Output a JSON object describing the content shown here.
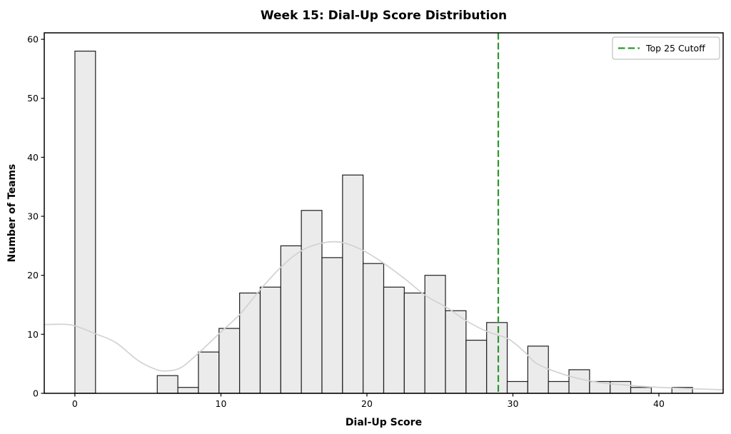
{
  "title": "Week 15: Dial-Up Score Distribution",
  "axes": {
    "xlabel": "Dial-Up Score",
    "ylabel": "Number of Teams"
  },
  "legend": {
    "label": "Top 25 Cutoff",
    "position": "upper right"
  },
  "colors": {
    "background": "#ffffff",
    "bar_fill": "#ebebeb",
    "bar_edge": "#1f1f1f",
    "kde_line": "#d2d2d2",
    "cutoff_line": "#2d962d",
    "spine": "#000000",
    "legend_border": "#b5b5b5"
  },
  "chart_data": {
    "type": "bar",
    "subtype": "histogram",
    "title": "Week 15: Dial-Up Score Distribution",
    "xlabel": "Dial-Up Score",
    "ylabel": "Number of Teams",
    "grid": false,
    "legend_position": "upper right",
    "xlim": [
      -2.1,
      44.4
    ],
    "ylim": [
      0,
      61.1
    ],
    "x_ticks": [
      0,
      10,
      20,
      30,
      40
    ],
    "y_ticks": [
      0,
      10,
      20,
      30,
      40,
      50,
      60
    ],
    "bin_start": 0,
    "bin_width": 1.41,
    "bin_counts": [
      58,
      0,
      0,
      0,
      3,
      1,
      7,
      11,
      17,
      18,
      25,
      31,
      23,
      37,
      22,
      18,
      17,
      20,
      14,
      9,
      12,
      2,
      8,
      2,
      4,
      2,
      2,
      1,
      0,
      1
    ],
    "total_teams": 365,
    "cutoff": {
      "x": 29,
      "label": "Top 25 Cutoff"
    },
    "kde_curve": [
      [
        -2.1,
        11.65
      ],
      [
        -0.8,
        11.7
      ],
      [
        0,
        11.45
      ],
      [
        1.4,
        10.1
      ],
      [
        2.8,
        8.6
      ],
      [
        4.3,
        5.6
      ],
      [
        5.5,
        4.1
      ],
      [
        6.3,
        3.8
      ],
      [
        7.3,
        4.4
      ],
      [
        8.5,
        6.9
      ],
      [
        10,
        10.4
      ],
      [
        11.3,
        13.4
      ],
      [
        12.7,
        17.6
      ],
      [
        14.2,
        21.6
      ],
      [
        15.6,
        24.3
      ],
      [
        17,
        25.5
      ],
      [
        18.2,
        25.6
      ],
      [
        19.5,
        24.5
      ],
      [
        21,
        22.3
      ],
      [
        22.6,
        19.4
      ],
      [
        24,
        16.6
      ],
      [
        25.5,
        14.5
      ],
      [
        26.8,
        12.3
      ],
      [
        28.2,
        10.5
      ],
      [
        29.7,
        9.2
      ],
      [
        30.8,
        7.0
      ],
      [
        31.6,
        5.1
      ],
      [
        33,
        3.6
      ],
      [
        34.5,
        2.5
      ],
      [
        36,
        1.8
      ],
      [
        37.5,
        1.45
      ],
      [
        39,
        1.15
      ],
      [
        40.5,
        0.95
      ],
      [
        42,
        0.8
      ],
      [
        44.4,
        0.6
      ]
    ]
  }
}
